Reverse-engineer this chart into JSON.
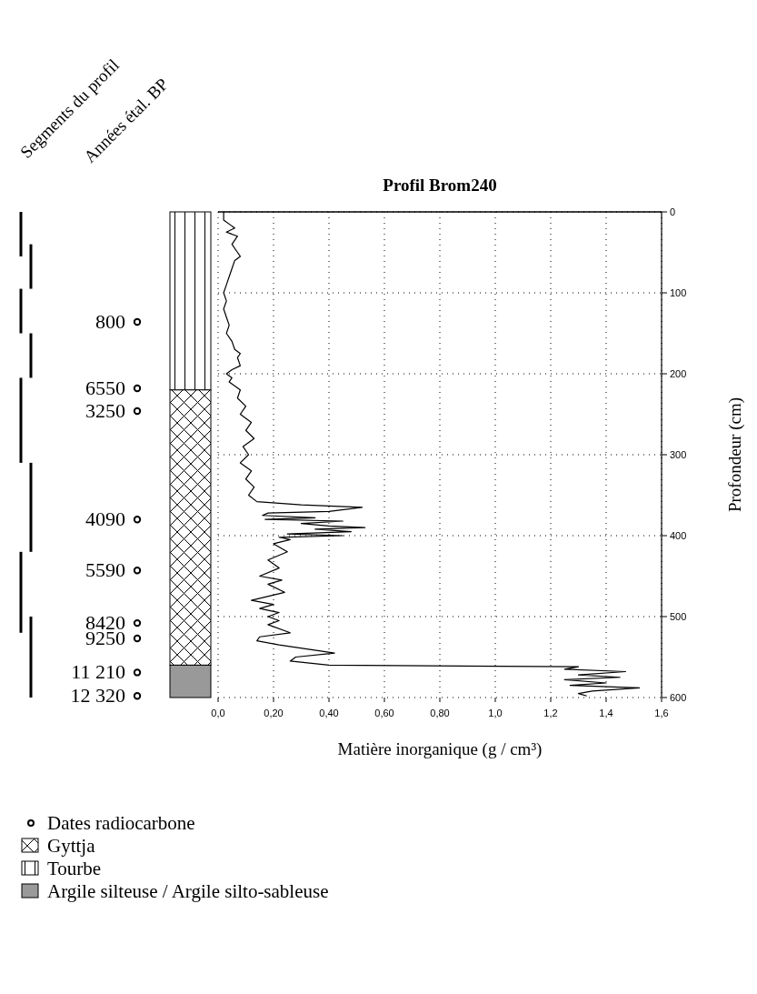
{
  "chart_data": {
    "type": "line",
    "title": "Profil Brom240",
    "xlabel": "Matière inorganique (g / cm³)",
    "ylabel": "Profondeur (cm)",
    "xlim": [
      0,
      1.6
    ],
    "xticks": [
      {
        "value": 0,
        "label": "0,0"
      },
      {
        "value": 0.2,
        "label": "0,20"
      },
      {
        "value": 0.4,
        "label": "0,40"
      },
      {
        "value": 0.6,
        "label": "0,60"
      },
      {
        "value": 0.8,
        "label": "0,80"
      },
      {
        "value": 1.0,
        "label": "1,0"
      },
      {
        "value": 1.2,
        "label": "1,2"
      },
      {
        "value": 1.4,
        "label": "1,4"
      },
      {
        "value": 1.6,
        "label": "1,6"
      }
    ],
    "ylim": [
      600,
      0
    ],
    "yticks": [
      0,
      100,
      200,
      300,
      400,
      500,
      600
    ],
    "grid": true,
    "series": [
      {
        "color": "#000000",
        "x": [
          0.02,
          0.02,
          0.06,
          0.03,
          0.07,
          0.05,
          0.07,
          0.08,
          0.06,
          0.05,
          0.04,
          0.03,
          0.02,
          0.03,
          0.02,
          0.03,
          0.04,
          0.03,
          0.05,
          0.06,
          0.08,
          0.07,
          0.08,
          0.05,
          0.03,
          0.05,
          0.04,
          0.08,
          0.07,
          0.1,
          0.08,
          0.12,
          0.1,
          0.13,
          0.09,
          0.11,
          0.08,
          0.12,
          0.1,
          0.13,
          0.11,
          0.14,
          0.3,
          0.52,
          0.4,
          0.18,
          0.16,
          0.35,
          0.17,
          0.45,
          0.3,
          0.4,
          0.53,
          0.35,
          0.48,
          0.25,
          0.45,
          0.22,
          0.26,
          0.2,
          0.25,
          0.18,
          0.22,
          0.15,
          0.23,
          0.18,
          0.24,
          0.12,
          0.2,
          0.15,
          0.22,
          0.18,
          0.22,
          0.18,
          0.26,
          0.15,
          0.14,
          0.22,
          0.32,
          0.42,
          0.28,
          0.26,
          0.4,
          1.3,
          1.25,
          1.47,
          1.3,
          1.45,
          1.25,
          1.4,
          1.27,
          1.52,
          1.35,
          1.3,
          1.33
        ],
        "values": [
          0,
          10,
          20,
          25,
          30,
          40,
          50,
          55,
          60,
          70,
          80,
          90,
          100,
          110,
          120,
          130,
          140,
          150,
          160,
          170,
          175,
          180,
          190,
          195,
          200,
          205,
          210,
          220,
          230,
          240,
          250,
          260,
          270,
          280,
          290,
          300,
          310,
          320,
          330,
          340,
          350,
          358,
          362,
          365,
          370,
          372,
          375,
          378,
          380,
          382,
          385,
          388,
          390,
          392,
          395,
          398,
          400,
          402,
          405,
          410,
          420,
          430,
          440,
          450,
          455,
          460,
          470,
          480,
          485,
          490,
          495,
          500,
          505,
          510,
          520,
          525,
          530,
          535,
          540,
          545,
          550,
          555,
          560,
          562,
          565,
          568,
          572,
          575,
          578,
          582,
          585,
          588,
          592,
          595,
          598
        ]
      }
    ],
    "annotations": [
      "Segments du profil",
      "Années étal. BP",
      "800",
      "6550",
      "3250",
      "4090",
      "5590",
      "8420",
      "9250",
      "11 210",
      "12 320",
      "Dates radiocarbone",
      "Gyttja",
      "Tourbe",
      "Argile silteuse / Argile silto-sableuse"
    ]
  }
}
